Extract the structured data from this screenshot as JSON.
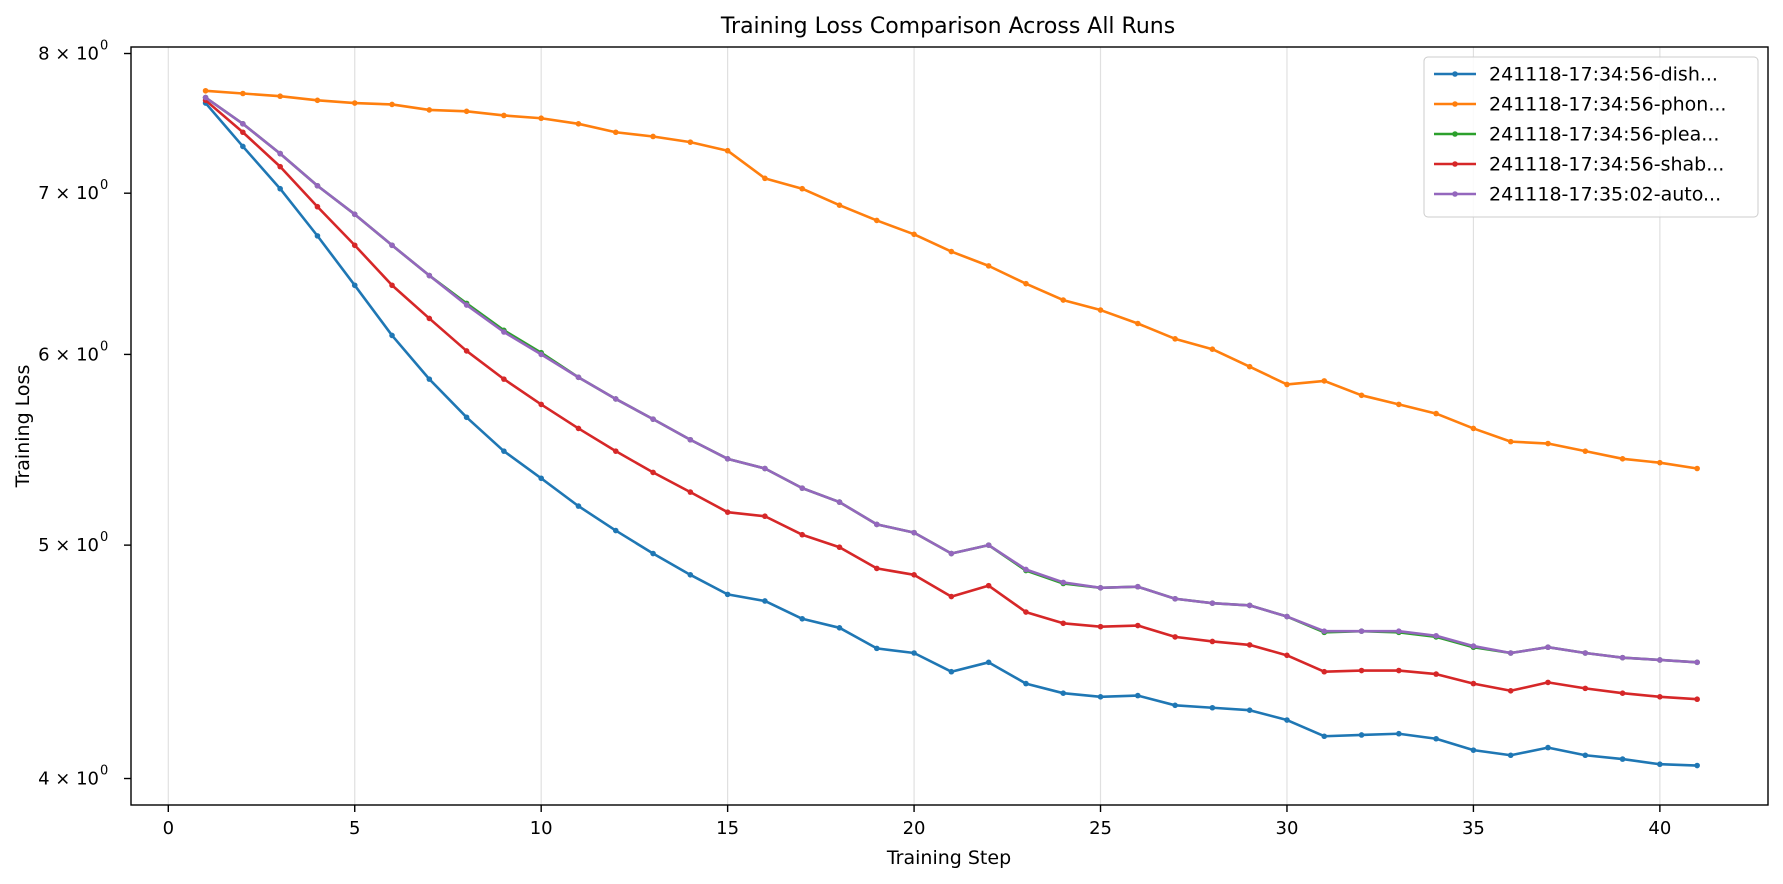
{
  "chart_data": {
    "type": "line",
    "title": "Training Loss Comparison Across All Runs",
    "xlabel": "Training Step",
    "ylabel": "Training Loss",
    "xlim": [
      -1.0,
      42.9
    ],
    "ylim": [
      3.9,
      8.05
    ],
    "y_scale": "log",
    "grid": "x-only",
    "legend_position": "top-right",
    "x_ticks": [
      0,
      5,
      10,
      15,
      20,
      25,
      30,
      35,
      40
    ],
    "y_ticks": [
      {
        "value": 4,
        "label_base": "4 × 10",
        "label_exp": "0"
      },
      {
        "value": 5,
        "label_base": "5 × 10",
        "label_exp": "0"
      },
      {
        "value": 6,
        "label_base": "6 × 10",
        "label_exp": "0"
      },
      {
        "value": 7,
        "label_base": "7 × 10",
        "label_exp": "0"
      },
      {
        "value": 8,
        "label_base": "8 × 10",
        "label_exp": "0"
      }
    ],
    "x": [
      1,
      2,
      3,
      4,
      5,
      6,
      7,
      8,
      9,
      10,
      11,
      12,
      13,
      14,
      15,
      16,
      17,
      18,
      19,
      20,
      21,
      22,
      23,
      24,
      25,
      26,
      27,
      28,
      29,
      30,
      31,
      32,
      33,
      34,
      35,
      36,
      37,
      38,
      39,
      40,
      41
    ],
    "series": [
      {
        "name": "241118-17:34:56-dish...",
        "color": "#1f77b4",
        "values": [
          7.63,
          7.32,
          7.03,
          6.72,
          6.41,
          6.11,
          5.86,
          5.65,
          5.47,
          5.33,
          5.19,
          5.07,
          4.96,
          4.86,
          4.77,
          4.74,
          4.66,
          4.62,
          4.53,
          4.51,
          4.43,
          4.47,
          4.38,
          4.34,
          4.325,
          4.33,
          4.29,
          4.28,
          4.27,
          4.23,
          4.165,
          4.17,
          4.175,
          4.155,
          4.11,
          4.09,
          4.12,
          4.09,
          4.075,
          4.055,
          4.05
        ]
      },
      {
        "name": "241118-17:34:56-phon...",
        "color": "#ff7f0e",
        "values": [
          7.72,
          7.7,
          7.68,
          7.65,
          7.63,
          7.62,
          7.58,
          7.57,
          7.54,
          7.52,
          7.48,
          7.42,
          7.39,
          7.35,
          7.29,
          7.1,
          7.03,
          6.92,
          6.82,
          6.73,
          6.62,
          6.53,
          6.42,
          6.32,
          6.26,
          6.18,
          6.09,
          6.03,
          5.93,
          5.83,
          5.85,
          5.77,
          5.72,
          5.67,
          5.59,
          5.52,
          5.51,
          5.47,
          5.43,
          5.41,
          5.38
        ]
      },
      {
        "name": "241118-17:34:56-plea...",
        "color": "#2ca02c",
        "values": [
          7.67,
          7.48,
          7.27,
          7.05,
          6.86,
          6.66,
          6.47,
          6.3,
          6.14,
          6.01,
          5.87,
          5.75,
          5.64,
          5.53,
          5.43,
          5.38,
          5.28,
          5.21,
          5.1,
          5.06,
          4.96,
          5.0,
          4.88,
          4.82,
          4.8,
          4.805,
          4.75,
          4.73,
          4.72,
          4.67,
          4.6,
          4.605,
          4.6,
          4.58,
          4.535,
          4.51,
          4.535,
          4.51,
          4.49,
          4.48,
          4.47
        ]
      },
      {
        "name": "241118-17:34:56-shab...",
        "color": "#d62728",
        "values": [
          7.65,
          7.42,
          7.18,
          6.91,
          6.66,
          6.41,
          6.21,
          6.02,
          5.86,
          5.72,
          5.59,
          5.47,
          5.36,
          5.26,
          5.16,
          5.14,
          5.05,
          4.99,
          4.89,
          4.86,
          4.76,
          4.81,
          4.69,
          4.64,
          4.625,
          4.63,
          4.58,
          4.56,
          4.545,
          4.5,
          4.43,
          4.435,
          4.435,
          4.42,
          4.38,
          4.35,
          4.385,
          4.36,
          4.34,
          4.325,
          4.315
        ]
      },
      {
        "name": "241118-17:35:02-auto...",
        "color": "#9467bd",
        "values": [
          7.67,
          7.48,
          7.27,
          7.05,
          6.86,
          6.66,
          6.47,
          6.29,
          6.13,
          6.0,
          5.87,
          5.75,
          5.64,
          5.53,
          5.43,
          5.38,
          5.28,
          5.21,
          5.1,
          5.06,
          4.96,
          5.0,
          4.885,
          4.825,
          4.8,
          4.805,
          4.75,
          4.73,
          4.72,
          4.67,
          4.605,
          4.605,
          4.605,
          4.585,
          4.54,
          4.51,
          4.535,
          4.51,
          4.49,
          4.48,
          4.47
        ]
      }
    ]
  }
}
